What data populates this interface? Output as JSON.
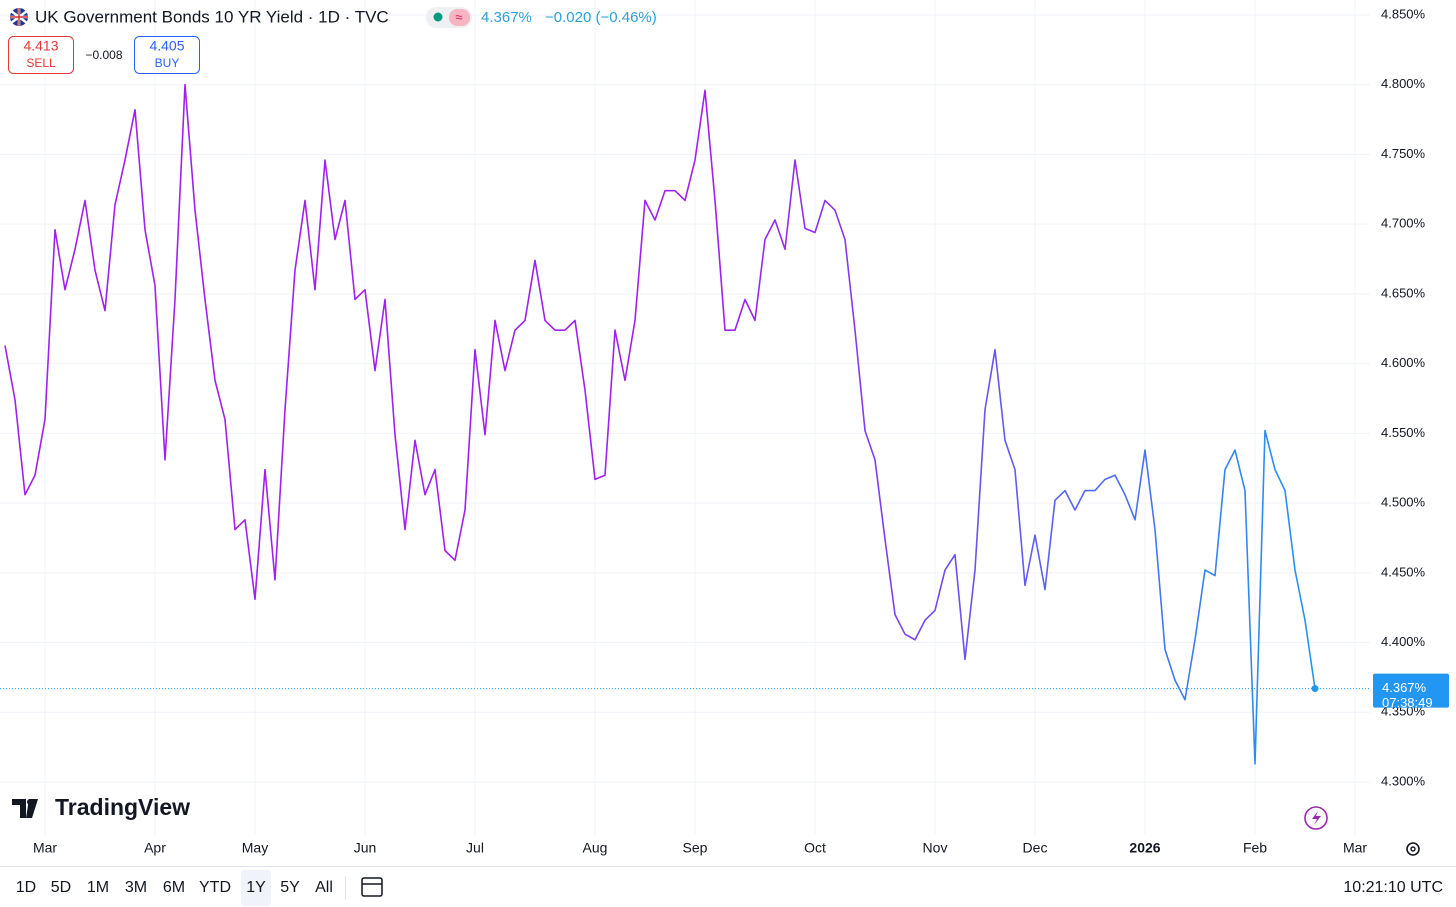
{
  "header": {
    "title": "UK Government Bonds 10 YR Yield · 1D · TVC",
    "price": "4.367%",
    "change": "−0.020 (−0.46%)",
    "sell_price": "4.413",
    "sell": "SELL",
    "spread": "−0.008",
    "buy_price": "4.405",
    "buy": "BUY"
  },
  "logo": "TradingView",
  "toolbar": {
    "ranges": [
      "1D",
      "5D",
      "1M",
      "3M",
      "6M",
      "YTD",
      "1Y",
      "5Y",
      "All"
    ],
    "active": "1Y",
    "time": "10:21:10 UTC"
  },
  "chart_data": {
    "type": "line",
    "colors": [
      "#a020f0",
      "#2196f3"
    ],
    "categories": [
      null,
      null,
      null,
      null,
      "Mar",
      null,
      null,
      null,
      null,
      null,
      null,
      null,
      null,
      null,
      null,
      "Apr",
      null,
      null,
      null,
      null,
      null,
      null,
      null,
      null,
      null,
      "May",
      null,
      null,
      null,
      null,
      null,
      null,
      null,
      null,
      null,
      null,
      "Jun",
      null,
      null,
      null,
      null,
      null,
      null,
      null,
      null,
      null,
      null,
      "Jul",
      null,
      null,
      null,
      null,
      null,
      null,
      null,
      null,
      null,
      null,
      null,
      "Aug",
      null,
      null,
      null,
      null,
      null,
      null,
      null,
      null,
      null,
      "Sep",
      null,
      null,
      null,
      null,
      null,
      null,
      null,
      null,
      null,
      null,
      null,
      "Oct",
      null,
      null,
      null,
      null,
      null,
      null,
      null,
      null,
      null,
      null,
      null,
      "Nov",
      null,
      null,
      null,
      null,
      null,
      null,
      null,
      null,
      null,
      "Dec",
      null,
      null,
      null,
      null,
      null,
      null,
      null,
      null,
      null,
      null,
      "2026",
      null,
      null,
      null,
      null,
      null,
      null,
      null,
      null,
      null,
      null,
      "Feb",
      null,
      null,
      null,
      null,
      null,
      null,
      null,
      null,
      null,
      "Mar",
      null
    ],
    "values": [
      4.613,
      4.574,
      4.506,
      4.52,
      4.56,
      4.696,
      4.653,
      4.682,
      4.717,
      4.667,
      4.638,
      4.714,
      4.746,
      4.782,
      4.696,
      4.656,
      4.531,
      4.646,
      4.8,
      4.71,
      4.646,
      4.588,
      4.56,
      4.481,
      4.488,
      4.431,
      4.524,
      4.445,
      4.567,
      4.667,
      4.717,
      4.653,
      4.746,
      4.689,
      4.717,
      4.646,
      4.653,
      4.595,
      4.646,
      4.549,
      4.481,
      4.545,
      4.506,
      4.524,
      4.466,
      4.459,
      4.495,
      4.61,
      4.549,
      4.631,
      4.595,
      4.624,
      4.631,
      4.674,
      4.631,
      4.624,
      4.624,
      4.631,
      4.581,
      4.517,
      4.52,
      4.624,
      4.588,
      4.631,
      4.717,
      4.703,
      4.724,
      4.724,
      4.717,
      4.746,
      4.796,
      4.717,
      4.624,
      4.624,
      4.646,
      4.631,
      4.689,
      4.703,
      4.682,
      4.746,
      4.697,
      4.694,
      4.717,
      4.71,
      4.689,
      4.624,
      4.552,
      4.531,
      4.474,
      4.42,
      4.406,
      4.402,
      4.416,
      4.423,
      4.452,
      4.463,
      4.388,
      4.452,
      4.567,
      4.61,
      4.545,
      4.524,
      4.441,
      4.477,
      4.438,
      4.502,
      4.509,
      4.495,
      4.509,
      4.509,
      4.517,
      4.52,
      4.506,
      4.488,
      4.538,
      4.481,
      4.395,
      4.373,
      4.359,
      4.402,
      4.452,
      4.448,
      4.524,
      4.538,
      4.509,
      4.313,
      4.552,
      4.524,
      4.509,
      4.452,
      4.416,
      4.367,
      null,
      null,
      null,
      null,
      null
    ],
    "ylim": [
      4.3,
      4.85
    ],
    "yticks": [
      {
        "value": 4.3,
        "label": "4.300%"
      },
      {
        "value": 4.35,
        "label": "4.350%"
      },
      {
        "value": 4.4,
        "label": "4.400%"
      },
      {
        "value": 4.45,
        "label": "4.450%"
      },
      {
        "value": 4.5,
        "label": "4.500%"
      },
      {
        "value": 4.55,
        "label": "4.550%"
      },
      {
        "value": 4.6,
        "label": "4.600%"
      },
      {
        "value": 4.65,
        "label": "4.650%"
      },
      {
        "value": 4.7,
        "label": "4.700%"
      },
      {
        "value": 4.75,
        "label": "4.750%"
      },
      {
        "value": 4.8,
        "label": "4.800%"
      },
      {
        "value": 4.85,
        "label": "4.850%"
      }
    ],
    "grid": true,
    "last_label": "4.367%",
    "countdown": "07:38:49"
  }
}
